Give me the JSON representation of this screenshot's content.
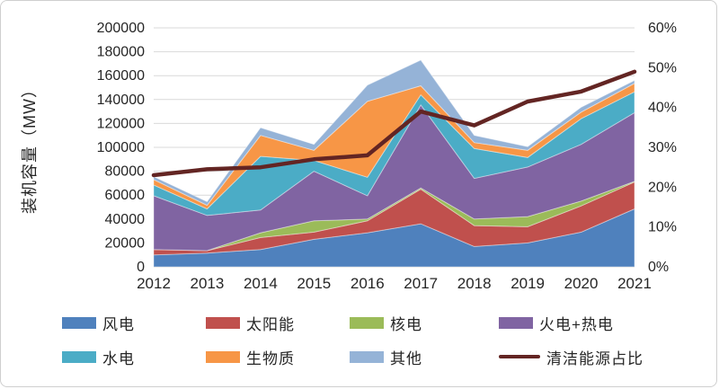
{
  "chart_data": {
    "type": "area",
    "stacked": true,
    "title": "",
    "ylabel": "装机容量（MW）",
    "categories": [
      "2012",
      "2013",
      "2014",
      "2015",
      "2016",
      "2017",
      "2018",
      "2019",
      "2020",
      "2021"
    ],
    "y_left": {
      "min": 0,
      "max": 200000,
      "step": 20000
    },
    "y_right": {
      "min": 0,
      "max": 60,
      "step": 10,
      "suffix": "%"
    },
    "grid": true,
    "legend_position": "bottom",
    "series": [
      {
        "name": "风电",
        "color": "#4F81BD",
        "values": [
          10000,
          11500,
          14500,
          23000,
          28500,
          36000,
          17000,
          20000,
          29000,
          48500
        ]
      },
      {
        "name": "太阳能",
        "color": "#C0504D",
        "values": [
          4500,
          2000,
          10000,
          6000,
          10000,
          29000,
          17500,
          13500,
          22000,
          22500
        ]
      },
      {
        "name": "核电",
        "color": "#9BBB59",
        "values": [
          0,
          0,
          4000,
          9500,
          1500,
          1000,
          5500,
          8500,
          4000,
          500
        ]
      },
      {
        "name": "火电+热电",
        "color": "#8064A2",
        "values": [
          45000,
          29500,
          19000,
          41500,
          19500,
          69500,
          34000,
          41500,
          47500,
          57500
        ]
      },
      {
        "name": "水电",
        "color": "#4BACC6",
        "values": [
          9000,
          5500,
          45000,
          9000,
          15500,
          8500,
          25000,
          8000,
          21500,
          17500
        ]
      },
      {
        "name": "生物质",
        "color": "#F79646",
        "values": [
          4500,
          3000,
          17500,
          8500,
          63500,
          7500,
          5000,
          6000,
          5500,
          7000
        ]
      },
      {
        "name": "其他",
        "color": "#95B3D7",
        "values": [
          2500,
          3000,
          6500,
          5000,
          13500,
          21500,
          6000,
          3000,
          4000,
          2500
        ]
      }
    ],
    "line_series": {
      "name": "清洁能源占比",
      "color": "#632523",
      "axis": "right",
      "values": [
        23,
        24.5,
        25,
        27,
        28,
        39,
        35.5,
        41.5,
        44,
        49
      ]
    }
  },
  "legend": {
    "items": [
      {
        "label": "风电",
        "color": "#4F81BD",
        "type": "box"
      },
      {
        "label": "太阳能",
        "color": "#C0504D",
        "type": "box"
      },
      {
        "label": "核电",
        "color": "#9BBB59",
        "type": "box"
      },
      {
        "label": "火电+热电",
        "color": "#8064A2",
        "type": "box"
      },
      {
        "label": "水电",
        "color": "#4BACC6",
        "type": "box"
      },
      {
        "label": "生物质",
        "color": "#F79646",
        "type": "box"
      },
      {
        "label": "其他",
        "color": "#95B3D7",
        "type": "box"
      },
      {
        "label": "清洁能源占比",
        "color": "#632523",
        "type": "line"
      }
    ]
  },
  "axis_text_color": "#262626",
  "gridline_color": "#d9d9d9",
  "baseline_color": "#bfbfbf"
}
